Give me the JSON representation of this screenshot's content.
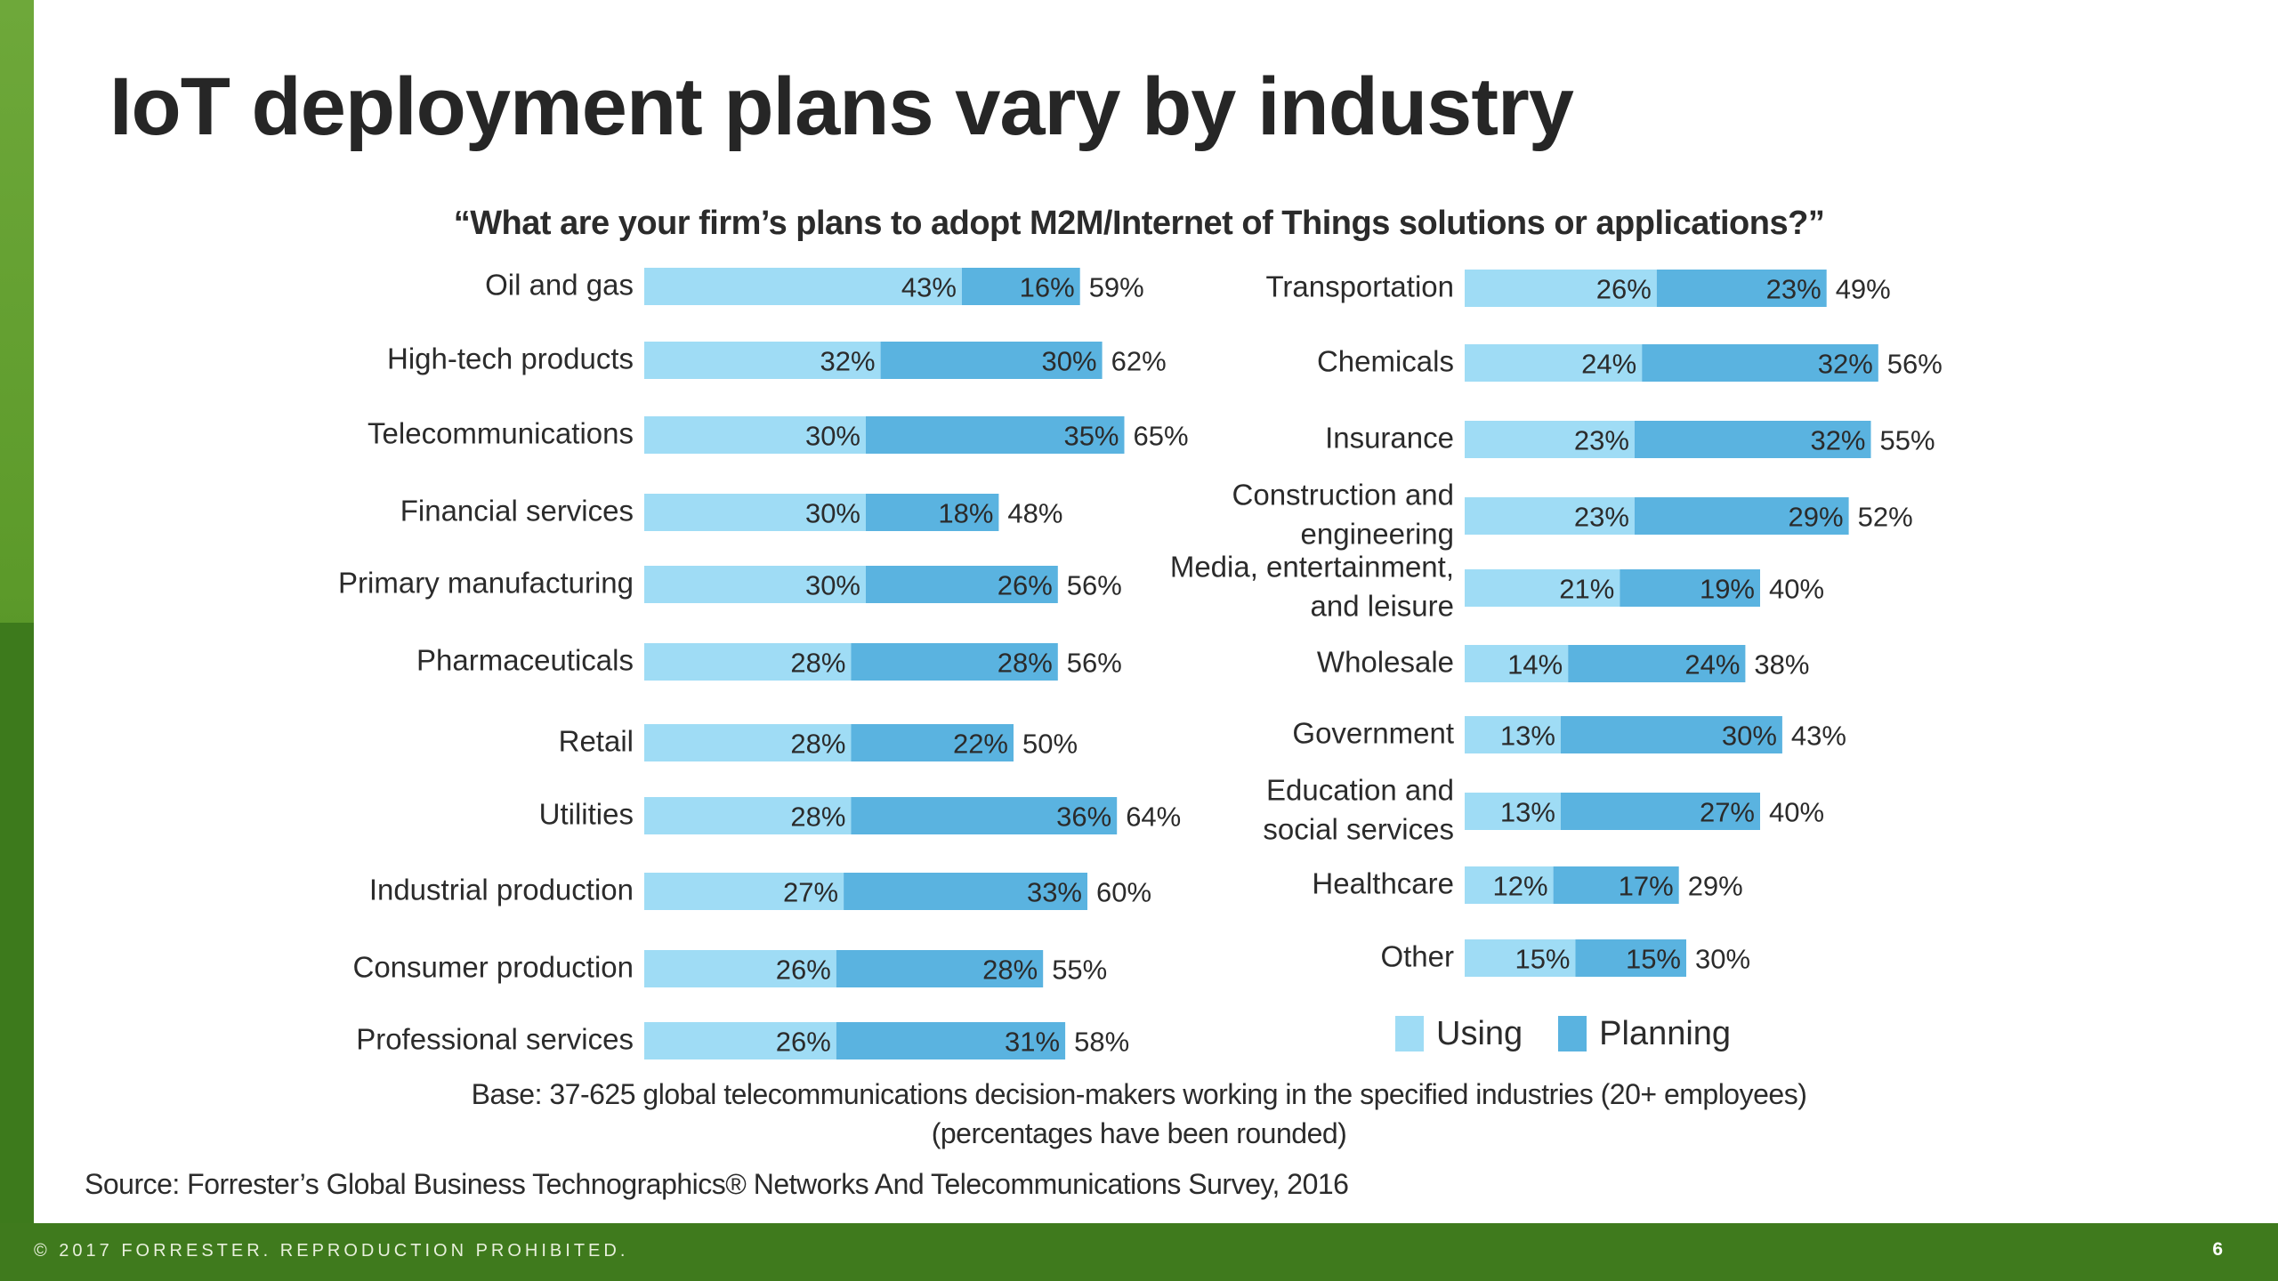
{
  "slide": {
    "title": "IoT deployment plans vary by industry",
    "question": "“What are your firm’s plans to adopt M2M/Internet of Things solutions or applications?”",
    "base_line1": "Base: 37-625 global telecommunications decision-makers working in the specified industries (20+ employees)",
    "base_line2": "(percentages have been rounded)",
    "source": "Source: Forrester’s Global Business Technographics® Networks And Telecommunications Survey, 2016",
    "footer": "© 2017 FORRESTER. REPRODUCTION PROHIBITED.",
    "page_number": "6"
  },
  "colors": {
    "using": "#9fdcf5",
    "planning": "#5ab3e0",
    "green": "#3f7a1d",
    "text": "#2b2b2b"
  },
  "chart_data": {
    "type": "bar",
    "orientation": "horizontal",
    "stacked": true,
    "legend": [
      "Using",
      "Planning"
    ],
    "legend_position": "bottom-right",
    "grid": false,
    "panels": [
      {
        "categories": [
          {
            "label": "Oil and gas",
            "using": 43,
            "planning": 16,
            "total": 59
          },
          {
            "label": "High-tech products",
            "using": 32,
            "planning": 30,
            "total": 62
          },
          {
            "label": "Telecommunications",
            "using": 30,
            "planning": 35,
            "total": 65
          },
          {
            "label": "Financial services",
            "using": 30,
            "planning": 18,
            "total": 48
          },
          {
            "label": "Primary manufacturing",
            "using": 30,
            "planning": 26,
            "total": 56
          },
          {
            "label": "Pharmaceuticals",
            "using": 28,
            "planning": 28,
            "total": 56
          },
          {
            "label": "Retail",
            "using": 28,
            "planning": 22,
            "total": 50
          },
          {
            "label": "Utilities",
            "using": 28,
            "planning": 36,
            "total": 64
          },
          {
            "label": "Industrial production",
            "using": 27,
            "planning": 33,
            "total": 60
          },
          {
            "label": "Consumer production",
            "using": 26,
            "planning": 28,
            "total": 55
          },
          {
            "label": "Professional services",
            "using": 26,
            "planning": 31,
            "total": 58
          }
        ]
      },
      {
        "categories": [
          {
            "label": "Transportation",
            "using": 26,
            "planning": 23,
            "total": 49
          },
          {
            "label": "Chemicals",
            "using": 24,
            "planning": 32,
            "total": 56
          },
          {
            "label": "Insurance",
            "using": 23,
            "planning": 32,
            "total": 55
          },
          {
            "label": "Construction and\nengineering",
            "using": 23,
            "planning": 29,
            "total": 52
          },
          {
            "label": "Media, entertainment,\nand leisure",
            "using": 21,
            "planning": 19,
            "total": 40
          },
          {
            "label": "Wholesale",
            "using": 14,
            "planning": 24,
            "total": 38
          },
          {
            "label": "Government",
            "using": 13,
            "planning": 30,
            "total": 43
          },
          {
            "label": "Education and\nsocial services",
            "using": 13,
            "planning": 27,
            "total": 40
          },
          {
            "label": "Healthcare",
            "using": 12,
            "planning": 17,
            "total": 29
          },
          {
            "label": "Other",
            "using": 15,
            "planning": 15,
            "total": 30
          }
        ]
      }
    ]
  }
}
